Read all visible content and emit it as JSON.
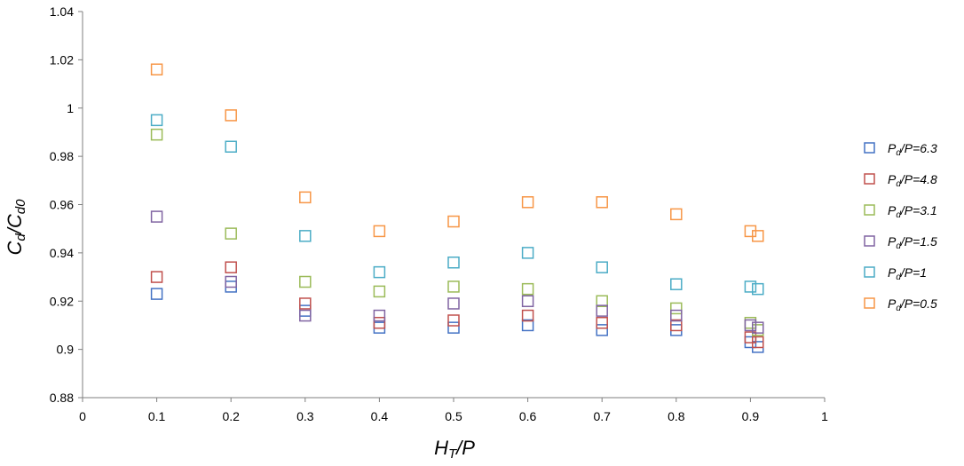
{
  "chart_data": {
    "type": "scatter",
    "title": "",
    "xlabel": {
      "main": "H",
      "sub": "T",
      "rest": "/P"
    },
    "ylabel": {
      "main1": "C",
      "sub1": "d",
      "mid": "/C",
      "sub2": "d0"
    },
    "xlim": [
      0,
      1
    ],
    "ylim": [
      0.88,
      1.04
    ],
    "x_ticks": [
      "0",
      "0.1",
      "0.2",
      "0.3",
      "0.4",
      "0.5",
      "0.6",
      "0.7",
      "0.8",
      "0.9",
      "1"
    ],
    "y_ticks": [
      "0.88",
      "0.9",
      "0.92",
      "0.94",
      "0.96",
      "0.98",
      "1",
      "1.02",
      "1.04"
    ],
    "grid": false,
    "legend_position": "right",
    "marker": "hollow-square",
    "x": [
      0.1,
      0.2,
      0.3,
      0.4,
      0.5,
      0.6,
      0.7,
      0.8,
      0.9,
      0.91
    ],
    "series": [
      {
        "name_main": "P",
        "name_sub": "d",
        "name_rest": "/P=6.3",
        "color": "#4472C4",
        "values": [
          0.923,
          0.926,
          0.916,
          0.909,
          0.909,
          0.91,
          0.908,
          0.908,
          0.903,
          0.901
        ]
      },
      {
        "name_main": "P",
        "name_sub": "d",
        "name_rest": "/P=4.8",
        "color": "#C0504D",
        "values": [
          0.93,
          0.934,
          0.919,
          0.911,
          0.912,
          0.914,
          0.911,
          0.91,
          0.905,
          0.903
        ]
      },
      {
        "name_main": "P",
        "name_sub": "d",
        "name_rest": "/P=3.1",
        "color": "#9BBB59",
        "values": [
          0.989,
          0.948,
          0.928,
          0.924,
          0.926,
          0.925,
          0.92,
          0.917,
          0.911,
          0.908
        ]
      },
      {
        "name_main": "P",
        "name_sub": "d",
        "name_rest": "/P=1.5",
        "color": "#8064A2",
        "values": [
          0.955,
          0.928,
          0.914,
          0.914,
          0.919,
          0.92,
          0.916,
          0.914,
          0.91,
          0.909
        ]
      },
      {
        "name_main": "P",
        "name_sub": "d",
        "name_rest": "/P=1",
        "color": "#4BACC6",
        "values": [
          0.995,
          0.984,
          0.947,
          0.932,
          0.936,
          0.94,
          0.934,
          0.927,
          0.926,
          0.925
        ]
      },
      {
        "name_main": "P",
        "name_sub": "d",
        "name_rest": "/P=0.5",
        "color": "#F79646",
        "values": [
          1.016,
          0.997,
          0.963,
          0.949,
          0.953,
          0.961,
          0.961,
          0.956,
          0.949,
          0.947
        ]
      }
    ]
  }
}
